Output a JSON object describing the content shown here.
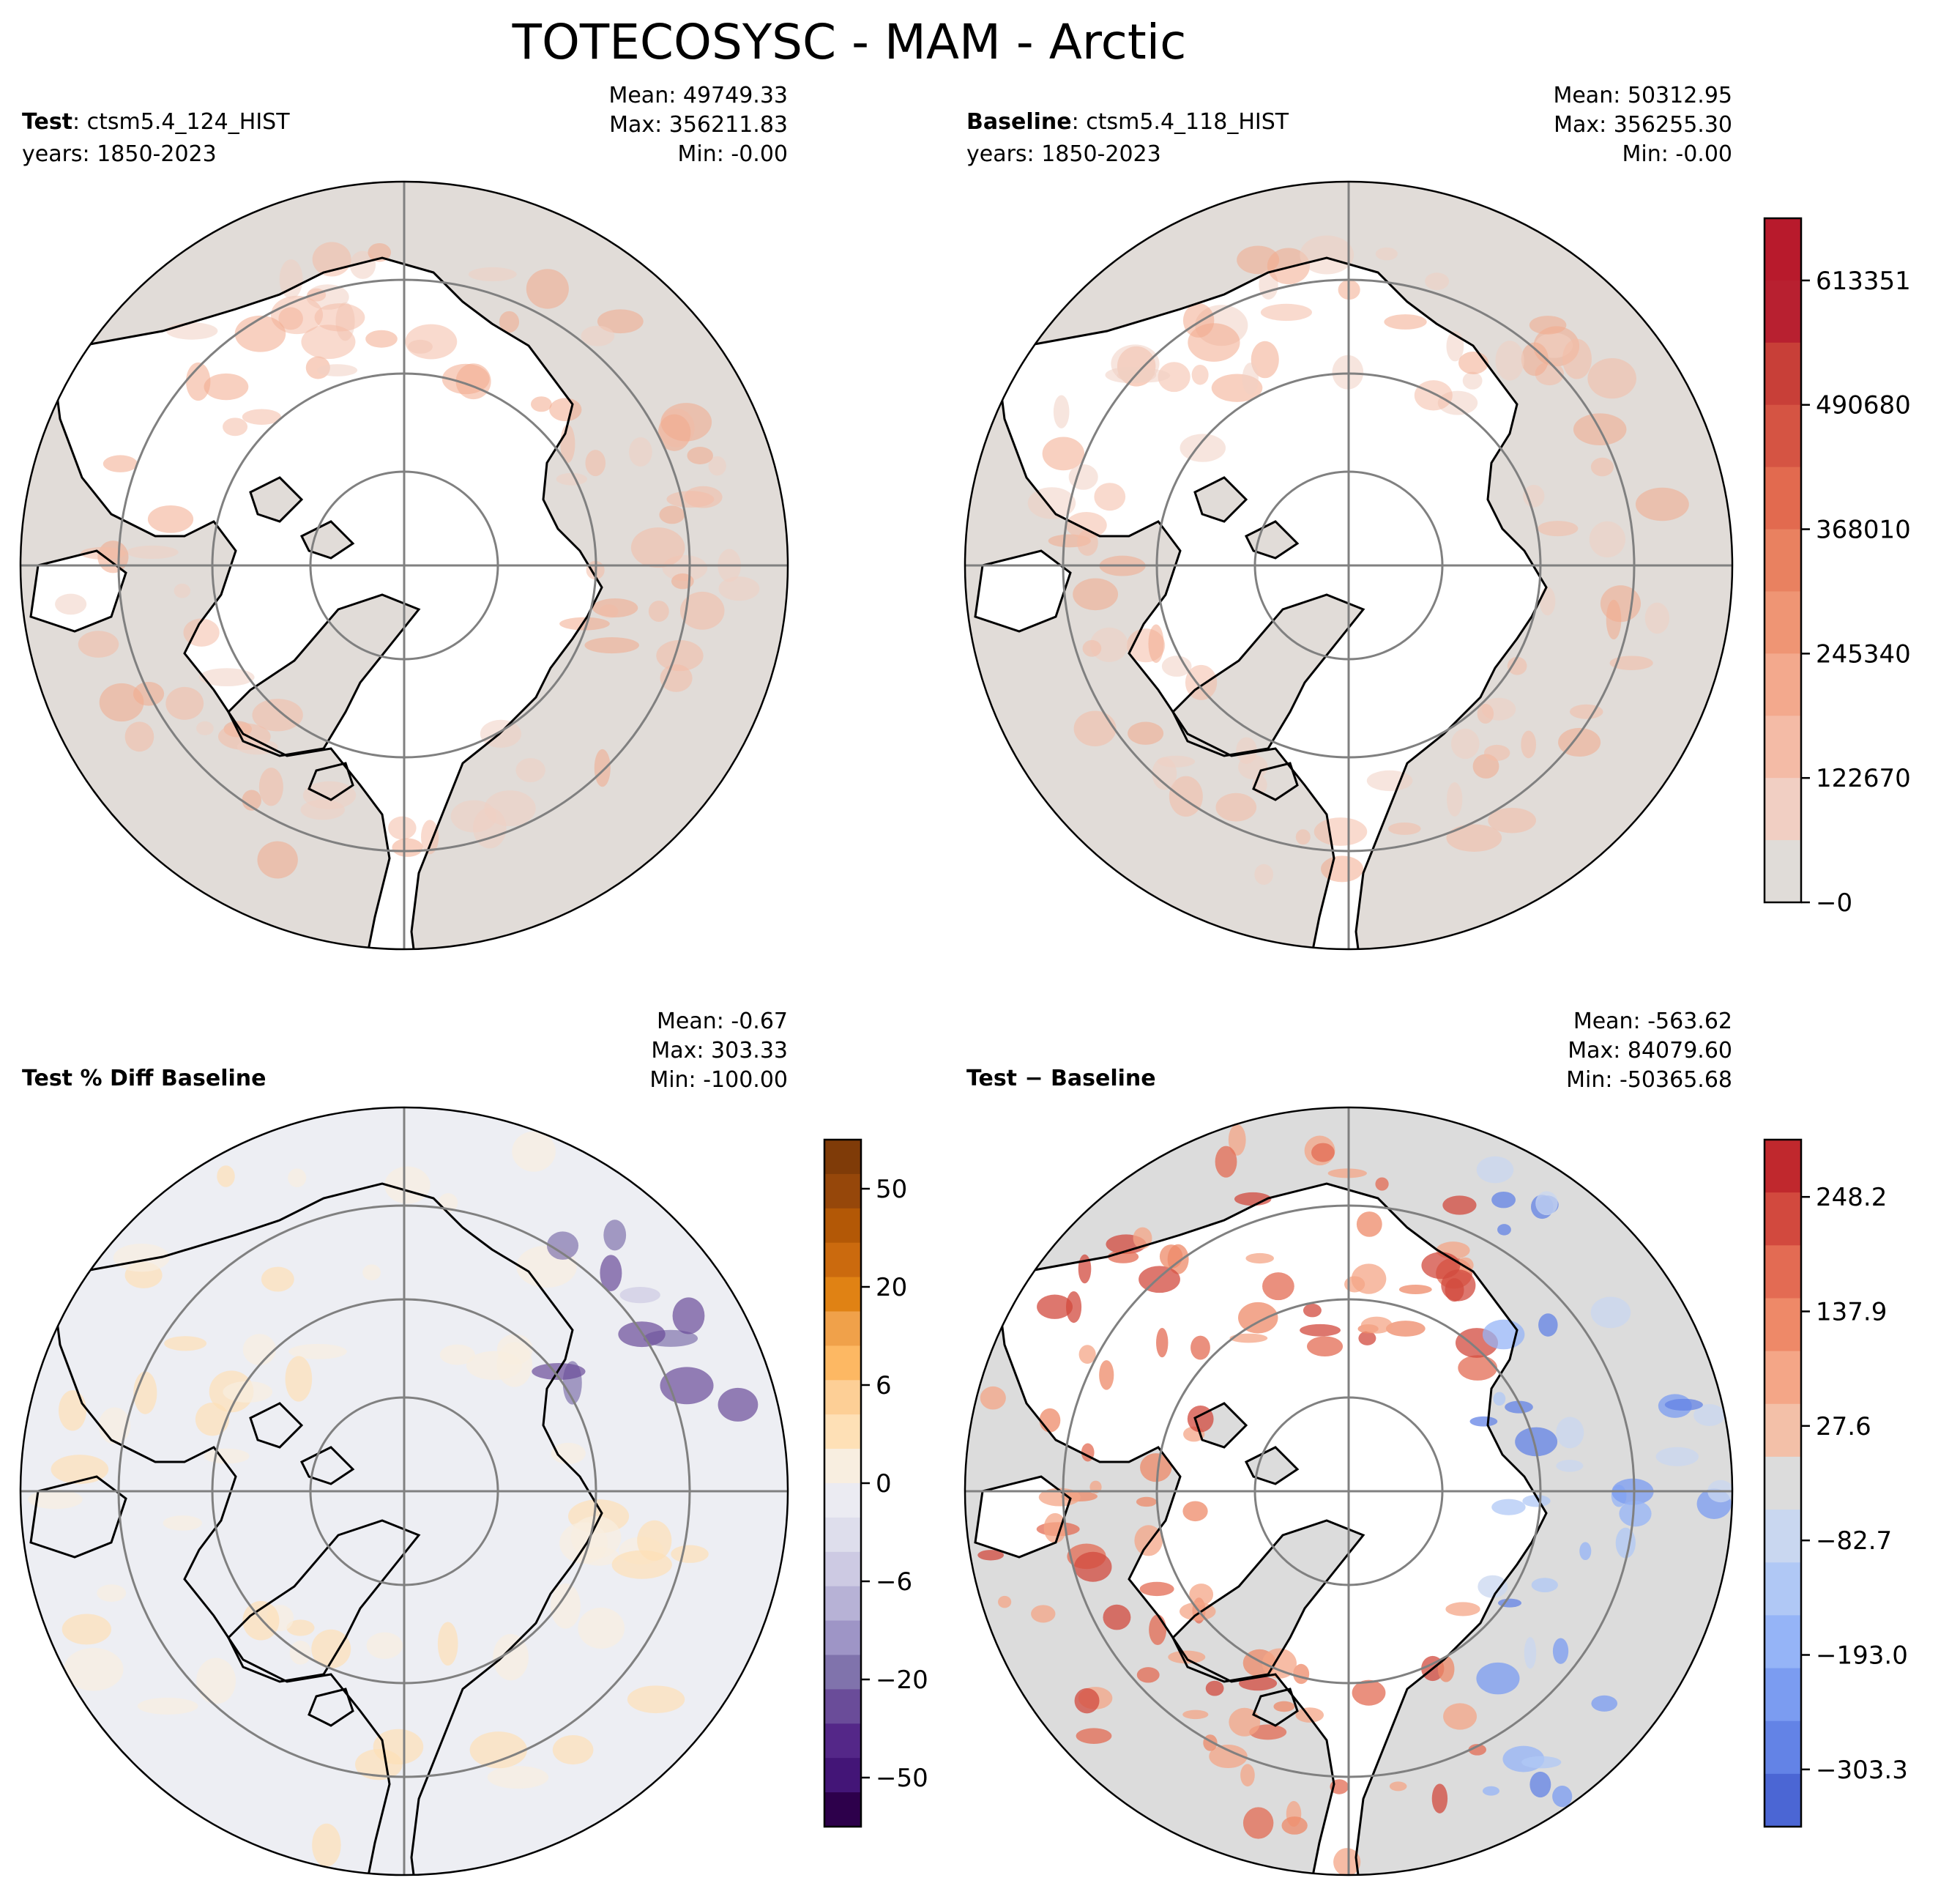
{
  "figure": {
    "title": "TOTECOSYSC - MAM - Arctic"
  },
  "panels": [
    {
      "id": "test",
      "label_bold": "Test",
      "label_rest": ": ctsm5.4_124_HIST",
      "years": "years: 1850-2023",
      "stats": {
        "mean": "Mean: 49749.33",
        "max": "Max: 356211.83",
        "min": "Min: -0.00"
      }
    },
    {
      "id": "baseline",
      "label_bold": "Baseline",
      "label_rest": ": ctsm5.4_118_HIST",
      "years": "years: 1850-2023",
      "stats": {
        "mean": "Mean: 50312.95",
        "max": "Max: 356255.30",
        "min": "Min: -0.00"
      }
    },
    {
      "id": "pct_diff",
      "label_bold": "Test % Diff Baseline",
      "label_rest": "",
      "years": "",
      "stats": {
        "mean": "Mean: -0.67",
        "max": "Max: 303.33",
        "min": "Min: -100.00"
      }
    },
    {
      "id": "diff",
      "label_bold": "Test − Baseline",
      "label_rest": "",
      "years": "",
      "stats": {
        "mean": "Mean: -563.62",
        "max": "Max: 84079.60",
        "min": "Min: -50365.68"
      }
    }
  ],
  "colorbars": {
    "abs": {
      "colormap": "reds",
      "tick_labels": [
        "613351",
        "490680",
        "368010",
        "245340",
        "122670",
        "−0"
      ],
      "tick_values": [
        613351,
        490680,
        368010,
        245340,
        122670,
        0
      ],
      "range": [
        0,
        674686
      ],
      "colors": [
        "#e0dcd8",
        "#f1cfc3",
        "#f4bba6",
        "#f3a98d",
        "#ef9574",
        "#e98160",
        "#e26a4f",
        "#d55443",
        "#c83f38",
        "#b82030",
        "#b81a2c"
      ]
    },
    "pct": {
      "colormap": "PuOr",
      "tick_labels": [
        "50",
        "20",
        "6",
        "0",
        "−6",
        "−20",
        "−50"
      ],
      "tick_values": [
        50,
        20,
        6,
        0,
        -6,
        -20,
        -50
      ],
      "colors": [
        "#7f3b08",
        "#96470a",
        "#b35806",
        "#cb6a0e",
        "#e08214",
        "#f0a14a",
        "#fdb863",
        "#fdcf96",
        "#fee0b6",
        "#f8eee0",
        "#ebebf2",
        "#dedeec",
        "#cdcae3",
        "#b7b2d6",
        "#9e95c6",
        "#8073ac",
        "#6a4c99",
        "#542788",
        "#431577",
        "#2d004b"
      ]
    },
    "diff": {
      "colormap": "coolwarm",
      "tick_labels": [
        "248.2",
        "137.9",
        "27.6",
        "−82.7",
        "−193.0",
        "−303.3"
      ],
      "tick_values": [
        248.2,
        137.9,
        27.6,
        -82.7,
        -193.0,
        -303.3
      ],
      "colors": [
        "#c0282d",
        "#d2493e",
        "#e36b53",
        "#ee8968",
        "#f4a687",
        "#f3c0a8",
        "#dcdcdc",
        "#c9d7f0",
        "#b0c8f5",
        "#95b4f7",
        "#7b9cf1",
        "#6383e6",
        "#4b66d4"
      ]
    }
  },
  "map_colors": {
    "land_zero": "#e1dcd8",
    "diff_land": "#dcdcdc",
    "pct_land": "#edeef3",
    "ocean": "#ffffff",
    "graticule": "#808080",
    "coast": "#000000"
  }
}
